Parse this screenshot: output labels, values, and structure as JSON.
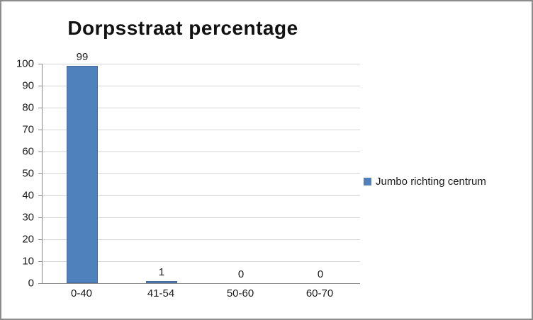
{
  "chart": {
    "title": "Dorpsstraat percentage",
    "legend": {
      "label": "Jumbo richting centrum",
      "swatch_color": "#4f81bd"
    }
  },
  "chart_data": {
    "type": "bar",
    "title": "Dorpsstraat percentage",
    "categories": [
      "0-40",
      "41-54",
      "50-60",
      "60-70"
    ],
    "values": [
      99,
      1,
      0,
      0
    ],
    "series": [
      {
        "name": "Jumbo richting centrum",
        "values": [
          99,
          1,
          0,
          0
        ]
      }
    ],
    "data_labels": [
      99,
      1,
      0,
      0
    ],
    "xlabel": "",
    "ylabel": "",
    "ylim": [
      0,
      100
    ],
    "ytick_step": 10,
    "yticks": [
      0,
      10,
      20,
      30,
      40,
      50,
      60,
      70,
      80,
      90,
      100
    ],
    "grid": true,
    "legend_position": "right",
    "bar_color": "#4f81bd"
  }
}
